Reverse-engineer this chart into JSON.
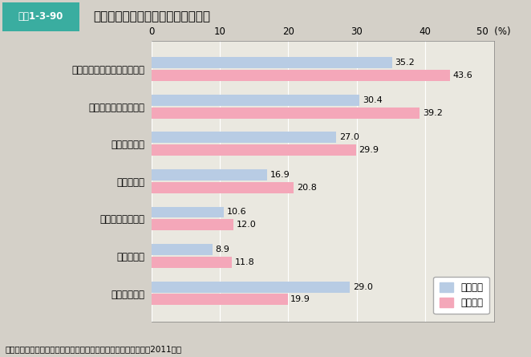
{
  "title_box": "図表1-3-90",
  "title_main": "実際に親世代から受けた子育て支援",
  "categories": [
    "物資（農作物など）の仕送り",
    "子どもの相手・預かり",
    "金銭的な支援",
    "食事の支援",
    "子どもの送り迎え",
    "家事の支援",
    "ほとんどない"
  ],
  "husband_values": [
    35.2,
    30.4,
    27.0,
    16.9,
    10.6,
    8.9,
    29.0
  ],
  "wife_values": [
    43.6,
    39.2,
    29.9,
    20.8,
    12.0,
    11.8,
    19.9
  ],
  "husband_color": "#b8cce4",
  "wife_color": "#f4a7b9",
  "husband_label": "夫側の親",
  "wife_label": "妻側の親",
  "xlim": [
    0,
    50
  ],
  "xticks": [
    0,
    10,
    20,
    30,
    40,
    50
  ],
  "background_color": "#d4d0c8",
  "plot_bg_color": "#eae8e0",
  "footer": "資料：内閣府「都市と地方における子育て環境に関する調査」（2011年）",
  "title_bg_color": "#ffffff",
  "title_border_color": "#3aada0",
  "box_bg_color": "#3aada0",
  "box_text_color": "#ffffff"
}
